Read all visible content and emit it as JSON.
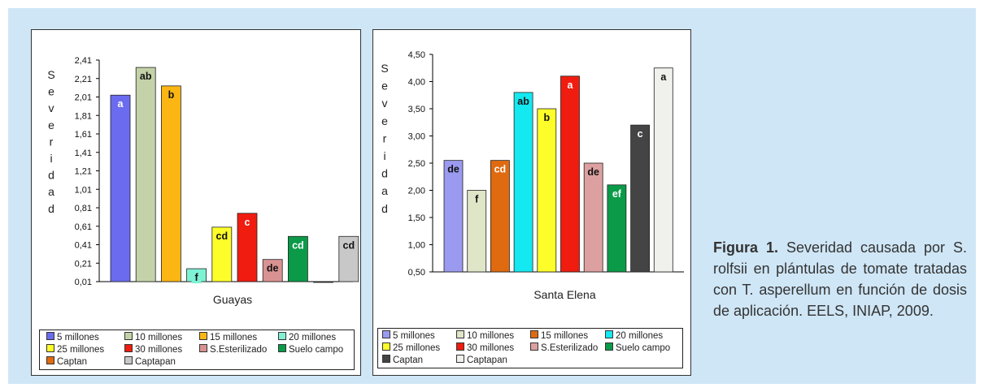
{
  "caption": {
    "label": "Figura 1.",
    "text": "Severidad causada por S. rolfsii en plántulas de tomate tratadas con T. asperellum en función de dosis de aplicación. EELS, INIAP, 2009."
  },
  "chart_data": [
    {
      "type": "bar",
      "xlabel": "Guayas",
      "ylabel": "Severidad",
      "ylim": [
        0.01,
        2.41
      ],
      "yticks": [
        "2,41",
        "2,21",
        "2,01",
        "1,81",
        "1,61",
        "1,41",
        "1,21",
        "1,01",
        "0,81",
        "0,61",
        "0,41",
        "0,21",
        "0,01"
      ],
      "categories": [
        "5 millones",
        "10 millones",
        "15 millones",
        "20 millones",
        "25 millones",
        "30 millones",
        "S.Esterilizado",
        "Suelo campo",
        "Captan",
        "Captapan"
      ],
      "values": [
        2.03,
        2.33,
        2.13,
        0.15,
        0.6,
        0.75,
        0.25,
        0.5,
        0.0,
        0.5
      ],
      "letters": [
        "a",
        "ab",
        "b",
        "f",
        "cd",
        "c",
        "de",
        "cd",
        "",
        "cd"
      ],
      "colors": [
        "#6b6bf0",
        "#c3d2a8",
        "#fbb614",
        "#7ff2d4",
        "#fdfd2a",
        "#f01c10",
        "#d99292",
        "#0a9a48",
        "#222222",
        "#c8c8c8"
      ],
      "legend": [
        "5 millones",
        "10 millones",
        "15 millones",
        "20 millones",
        "25 millones",
        "30 millones",
        "S.Esterilizado",
        "Suelo campo",
        "Captan",
        "Captapan"
      ],
      "legend_colors": [
        "#6b6bf0",
        "#c3d2a8",
        "#fbb614",
        "#7ff2d4",
        "#fdfd2a",
        "#f01c10",
        "#d99292",
        "#0a9a48",
        "#e06a10",
        "#c8c8c8"
      ],
      "legend_position": "bottom",
      "grid": false
    },
    {
      "type": "bar",
      "xlabel": "Santa Elena",
      "ylabel": "Severidad",
      "ylim": [
        0.5,
        4.5
      ],
      "yticks": [
        "4,50",
        "4,00",
        "3,50",
        "3,00",
        "2,50",
        "2,00",
        "1,50",
        "1,00",
        "0,50"
      ],
      "categories": [
        "5 millones",
        "10 millones",
        "15 millones",
        "20 millones",
        "25 millones",
        "30 millones",
        "S.Esterilizado",
        "Suelo campo",
        "Captan",
        "Captapan"
      ],
      "values": [
        2.55,
        2.0,
        2.55,
        3.8,
        3.5,
        4.1,
        2.5,
        2.1,
        3.2,
        4.25
      ],
      "letters": [
        "de",
        "f",
        "cd",
        "ab",
        "b",
        "a",
        "de",
        "ef",
        "c",
        "a"
      ],
      "colors": [
        "#9a9af0",
        "#dfe6c8",
        "#e06a10",
        "#14e8f0",
        "#fdfd2a",
        "#f01c10",
        "#dca0a0",
        "#0a9a48",
        "#444444",
        "#f0f0ec"
      ],
      "legend": [
        "5 millones",
        "10 millones",
        "15 millones",
        "20 millones",
        "25 millones",
        "30 millones",
        "S.Esterilizado",
        "Suelo campo",
        "Captan",
        "Captapan"
      ],
      "legend_colors": [
        "#9a9af0",
        "#dfe6c8",
        "#e06a10",
        "#14e8f0",
        "#fdfd2a",
        "#f01c10",
        "#dca0a0",
        "#0a9a48",
        "#444444",
        "#f0f0ec"
      ],
      "legend_position": "bottom",
      "grid": false
    }
  ]
}
